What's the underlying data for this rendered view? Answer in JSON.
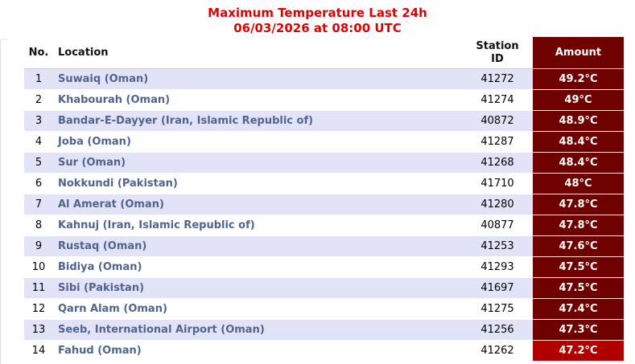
{
  "header": {
    "title": "Maximum Temperature Last 24h",
    "subtitle": "06/03/2026 at 08:00 UTC"
  },
  "table": {
    "columns": [
      "No.",
      "Location",
      "Station ID",
      "Amount"
    ],
    "rows": [
      {
        "no": "1",
        "location": "Suwaiq (Oman)",
        "station_id": "41272",
        "amount": "49.2°C"
      },
      {
        "no": "2",
        "location": "Khabourah (Oman)",
        "station_id": "41274",
        "amount": "49°C"
      },
      {
        "no": "3",
        "location": "Bandar-E-Dayyer (Iran, Islamic Republic of)",
        "station_id": "40872",
        "amount": "48.9°C"
      },
      {
        "no": "4",
        "location": "Joba (Oman)",
        "station_id": "41287",
        "amount": "48.4°C"
      },
      {
        "no": "5",
        "location": "Sur (Oman)",
        "station_id": "41268",
        "amount": "48.4°C"
      },
      {
        "no": "6",
        "location": "Nokkundi (Pakistan)",
        "station_id": "41710",
        "amount": "48°C"
      },
      {
        "no": "7",
        "location": "Al Amerat (Oman)",
        "station_id": "41280",
        "amount": "47.8°C"
      },
      {
        "no": "8",
        "location": "Kahnuj (Iran, Islamic Republic of)",
        "station_id": "40877",
        "amount": "47.8°C"
      },
      {
        "no": "9",
        "location": "Rustaq (Oman)",
        "station_id": "41253",
        "amount": "47.6°C"
      },
      {
        "no": "10",
        "location": "Bidiya (Oman)",
        "station_id": "41293",
        "amount": "47.5°C"
      },
      {
        "no": "11",
        "location": "Sibi (Pakistan)",
        "station_id": "41697",
        "amount": "47.5°C"
      },
      {
        "no": "12",
        "location": "Qarn Alam (Oman)",
        "station_id": "41275",
        "amount": "47.4°C"
      },
      {
        "no": "13",
        "location": "Seeb, International Airport (Oman)",
        "station_id": "41256",
        "amount": "47.3°C"
      },
      {
        "no": "14",
        "location": "Fahud (Oman)",
        "station_id": "41262",
        "amount": "47.2°C"
      }
    ]
  }
}
